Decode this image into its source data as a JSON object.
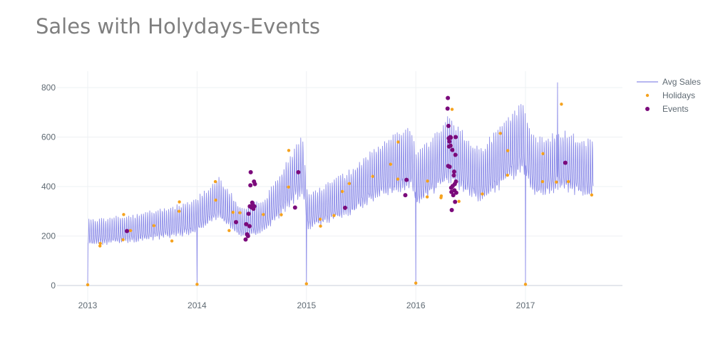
{
  "chart_data": {
    "type": "line",
    "title": "Sales with Holydays-Events",
    "xlabel": "",
    "ylabel": "",
    "xlim": [
      "2013-01-01",
      "2017-09-15"
    ],
    "ylim": [
      -20,
      870
    ],
    "x_ticks": [
      "2013",
      "2014",
      "2015",
      "2016",
      "2017"
    ],
    "y_ticks": [
      0,
      200,
      400,
      600,
      800
    ],
    "grid": true,
    "legend": "right",
    "series": [
      {
        "name": "Avg Sales",
        "mode": "line",
        "color": "#8c8ce8",
        "trend": [
          [
            "2013-01-01",
            200
          ],
          [
            "2013-06-01",
            215
          ],
          [
            "2013-12-15",
            255
          ],
          [
            "2014-03-15",
            330
          ],
          [
            "2014-06-01",
            235
          ],
          [
            "2014-08-15",
            265
          ],
          [
            "2014-12-20",
            460
          ],
          [
            "2015-01-05",
            280
          ],
          [
            "2015-06-01",
            355
          ],
          [
            "2015-09-01",
            435
          ],
          [
            "2015-12-15",
            485
          ],
          [
            "2016-01-05",
            400
          ],
          [
            "2016-04-20",
            515
          ],
          [
            "2016-08-01",
            415
          ],
          [
            "2016-12-20",
            560
          ],
          [
            "2017-02-01",
            445
          ],
          [
            "2017-05-01",
            470
          ],
          [
            "2017-08-15",
            440
          ]
        ],
        "zero_days": [
          "2013-01-01",
          "2014-01-01",
          "2015-01-01",
          "2016-01-01",
          "2017-01-01"
        ],
        "peak": [
          "2017-04-18",
          820
        ]
      },
      {
        "name": "Holidays",
        "mode": "markers",
        "color": "#f5a21e",
        "points": [
          [
            "2013-01-01",
            3
          ],
          [
            "2013-02-11",
            160
          ],
          [
            "2013-02-12",
            170
          ],
          [
            "2013-04-29",
            185
          ],
          [
            "2013-05-01",
            287
          ],
          [
            "2013-05-24",
            222
          ],
          [
            "2013-08-10",
            242
          ],
          [
            "2013-10-09",
            180
          ],
          [
            "2013-11-02",
            300
          ],
          [
            "2013-11-03",
            338
          ],
          [
            "2014-01-01",
            5
          ],
          [
            "2014-03-03",
            420
          ],
          [
            "2014-03-04",
            345
          ],
          [
            "2014-04-18",
            222
          ],
          [
            "2014-05-01",
            296
          ],
          [
            "2014-05-24",
            294
          ],
          [
            "2014-08-10",
            287
          ],
          [
            "2014-10-09",
            286
          ],
          [
            "2014-11-02",
            398
          ],
          [
            "2014-11-03",
            546
          ],
          [
            "2015-01-01",
            7
          ],
          [
            "2015-02-16",
            268
          ],
          [
            "2015-02-17",
            240
          ],
          [
            "2015-04-03",
            283
          ],
          [
            "2015-05-01",
            380
          ],
          [
            "2015-05-24",
            412
          ],
          [
            "2015-08-10",
            441
          ],
          [
            "2015-10-09",
            490
          ],
          [
            "2015-11-02",
            430
          ],
          [
            "2015-11-03",
            580
          ],
          [
            "2016-01-01",
            10
          ],
          [
            "2016-02-08",
            358
          ],
          [
            "2016-02-09",
            422
          ],
          [
            "2016-03-25",
            355
          ],
          [
            "2016-03-26",
            362
          ],
          [
            "2016-05-01",
            712
          ],
          [
            "2016-05-24",
            340
          ],
          [
            "2016-08-10",
            370
          ],
          [
            "2016-10-09",
            615
          ],
          [
            "2016-11-02",
            446
          ],
          [
            "2016-11-03",
            545
          ],
          [
            "2017-01-01",
            5
          ],
          [
            "2017-02-27",
            420
          ],
          [
            "2017-02-28",
            533
          ],
          [
            "2017-04-14",
            418
          ],
          [
            "2017-05-01",
            733
          ],
          [
            "2017-05-24",
            420
          ],
          [
            "2017-08-10",
            366
          ]
        ]
      },
      {
        "name": "Events",
        "mode": "markers",
        "color": "#7b0a7b",
        "points": [
          [
            "2013-05-12",
            220
          ],
          [
            "2014-05-11",
            256
          ],
          [
            "2014-06-12",
            186
          ],
          [
            "2014-06-14",
            248
          ],
          [
            "2014-06-17",
            207
          ],
          [
            "2014-06-20",
            200
          ],
          [
            "2014-06-22",
            290
          ],
          [
            "2014-06-25",
            240
          ],
          [
            "2014-06-26",
            320
          ],
          [
            "2014-06-28",
            405
          ],
          [
            "2014-06-29",
            458
          ],
          [
            "2014-07-01",
            316
          ],
          [
            "2014-07-04",
            335
          ],
          [
            "2014-07-06",
            325
          ],
          [
            "2014-07-08",
            310
          ],
          [
            "2014-07-10",
            420
          ],
          [
            "2014-07-11",
            320
          ],
          [
            "2014-07-13",
            410
          ],
          [
            "2014-11-24",
            315
          ],
          [
            "2014-12-05",
            458
          ],
          [
            "2015-05-10",
            314
          ],
          [
            "2015-11-27",
            365
          ],
          [
            "2015-12-01",
            427
          ],
          [
            "2016-04-16",
            715
          ],
          [
            "2016-04-17",
            758
          ],
          [
            "2016-04-18",
            483
          ],
          [
            "2016-04-19",
            645
          ],
          [
            "2016-04-20",
            595
          ],
          [
            "2016-04-21",
            562
          ],
          [
            "2016-04-22",
            582
          ],
          [
            "2016-04-23",
            480
          ],
          [
            "2016-04-25",
            600
          ],
          [
            "2016-04-26",
            565
          ],
          [
            "2016-04-27",
            598
          ],
          [
            "2016-04-28",
            395
          ],
          [
            "2016-04-29",
            378
          ],
          [
            "2016-04-30",
            305
          ],
          [
            "2016-05-02",
            548
          ],
          [
            "2016-05-03",
            402
          ],
          [
            "2016-05-05",
            365
          ],
          [
            "2016-05-07",
            445
          ],
          [
            "2016-05-08",
            460
          ],
          [
            "2016-05-09",
            385
          ],
          [
            "2016-05-10",
            410
          ],
          [
            "2016-05-11",
            338
          ],
          [
            "2016-05-12",
            528
          ],
          [
            "2016-05-13",
            600
          ],
          [
            "2016-05-14",
            420
          ],
          [
            "2016-05-15",
            375
          ],
          [
            "2017-05-14",
            496
          ]
        ]
      }
    ]
  }
}
